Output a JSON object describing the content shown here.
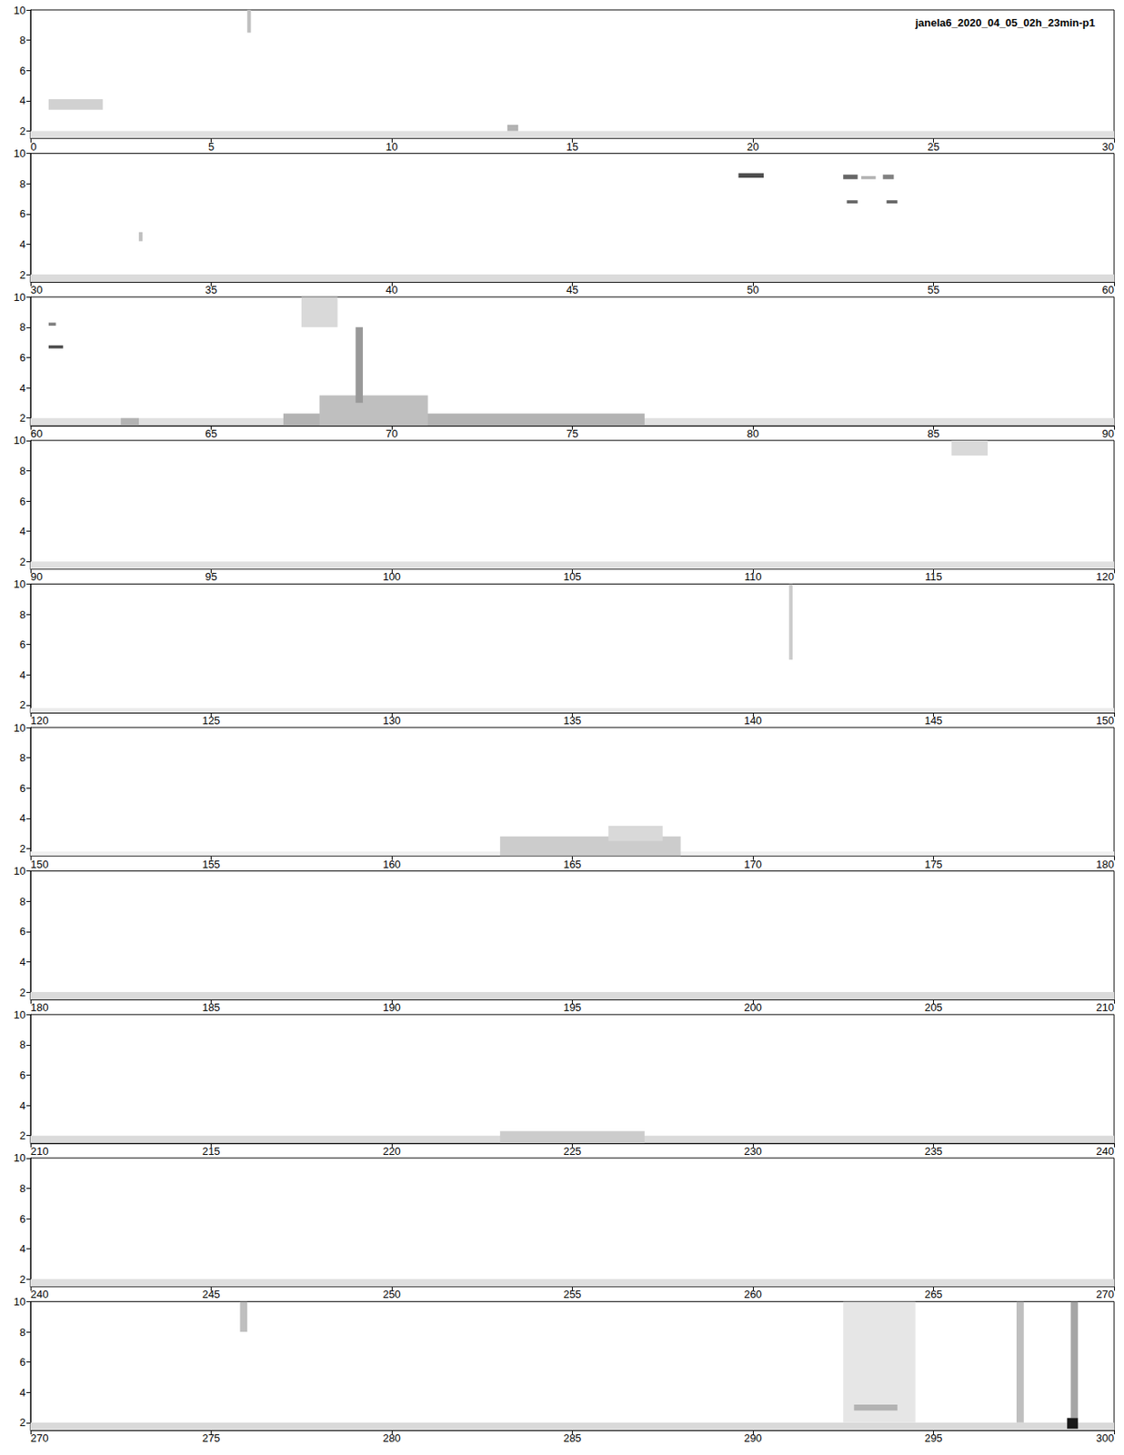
{
  "chart_data": {
    "type": "spectrogram",
    "title": "janela6_2020_04_05_02h_23min-p1",
    "ylim": [
      1.5,
      10
    ],
    "yticks": [
      2,
      4,
      6,
      8,
      10
    ],
    "panels": [
      {
        "xlim": [
          0,
          30
        ],
        "xticks": [
          0,
          5,
          10,
          15,
          20,
          25,
          30
        ]
      },
      {
        "xlim": [
          30,
          60
        ],
        "xticks": [
          30,
          35,
          40,
          45,
          50,
          55,
          60
        ]
      },
      {
        "xlim": [
          60,
          90
        ],
        "xticks": [
          60,
          65,
          70,
          75,
          80,
          85,
          90
        ]
      },
      {
        "xlim": [
          90,
          120
        ],
        "xticks": [
          90,
          95,
          100,
          105,
          110,
          115,
          120
        ]
      },
      {
        "xlim": [
          120,
          150
        ],
        "xticks": [
          120,
          125,
          130,
          135,
          140,
          145,
          150
        ]
      },
      {
        "xlim": [
          150,
          180
        ],
        "xticks": [
          150,
          155,
          160,
          165,
          170,
          175,
          180
        ]
      },
      {
        "xlim": [
          180,
          210
        ],
        "xticks": [
          180,
          185,
          190,
          195,
          200,
          205,
          210
        ]
      },
      {
        "xlim": [
          210,
          240
        ],
        "xticks": [
          210,
          215,
          220,
          225,
          230,
          235,
          240
        ]
      },
      {
        "xlim": [
          240,
          270
        ],
        "xticks": [
          240,
          245,
          250,
          255,
          260,
          265,
          270
        ]
      },
      {
        "xlim": [
          270,
          300
        ],
        "xticks": [
          270,
          275,
          280,
          285,
          290,
          295,
          300
        ]
      }
    ],
    "events": [
      [
        0,
        30,
        1.5,
        2.0,
        0.12
      ],
      [
        0.5,
        2.0,
        3.4,
        4.1,
        0.18
      ],
      [
        13.2,
        13.5,
        2.0,
        2.4,
        0.3
      ],
      [
        6.0,
        6.1,
        8.5,
        10,
        0.25
      ],
      [
        30,
        60,
        1.5,
        2.0,
        0.14
      ],
      [
        49.6,
        50.3,
        8.4,
        8.7,
        0.7
      ],
      [
        52.5,
        52.9,
        8.3,
        8.6,
        0.6
      ],
      [
        53.0,
        53.4,
        8.3,
        8.5,
        0.3
      ],
      [
        53.6,
        53.9,
        8.3,
        8.6,
        0.5
      ],
      [
        52.6,
        52.9,
        6.7,
        6.9,
        0.6
      ],
      [
        53.7,
        54.0,
        6.7,
        6.9,
        0.6
      ],
      [
        33.0,
        33.1,
        4.2,
        4.8,
        0.25
      ],
      [
        60,
        90,
        1.5,
        2.0,
        0.12
      ],
      [
        60.5,
        60.7,
        8.1,
        8.3,
        0.5
      ],
      [
        60.5,
        60.9,
        6.6,
        6.8,
        0.7
      ],
      [
        67,
        77,
        1.5,
        2.3,
        0.3
      ],
      [
        68,
        71,
        1.5,
        3.5,
        0.25
      ],
      [
        69.0,
        69.2,
        3.0,
        8.0,
        0.4
      ],
      [
        67.5,
        68.5,
        8.0,
        10,
        0.15
      ],
      [
        62.5,
        63.0,
        1.5,
        2.0,
        0.3
      ],
      [
        90,
        120,
        1.5,
        2.0,
        0.12
      ],
      [
        115.5,
        116.5,
        9.0,
        10,
        0.15
      ],
      [
        120,
        150,
        1.5,
        1.8,
        0.08
      ],
      [
        141.0,
        141.1,
        5.0,
        10,
        0.2
      ],
      [
        150,
        180,
        1.5,
        1.8,
        0.06
      ],
      [
        163.0,
        168.0,
        1.5,
        2.8,
        0.2
      ],
      [
        166.0,
        167.5,
        2.5,
        3.5,
        0.15
      ],
      [
        180,
        210,
        1.5,
        2.0,
        0.14
      ],
      [
        210,
        240,
        1.5,
        2.0,
        0.14
      ],
      [
        223.0,
        227.0,
        1.5,
        2.3,
        0.2
      ],
      [
        240,
        270,
        1.5,
        2.0,
        0.13
      ],
      [
        270,
        300,
        1.5,
        2.0,
        0.15
      ],
      [
        275.8,
        276.0,
        8.0,
        10,
        0.25
      ],
      [
        292.5,
        294.5,
        2.0,
        10,
        0.1
      ],
      [
        292.8,
        294.0,
        2.8,
        3.2,
        0.3
      ],
      [
        297.3,
        297.5,
        2.0,
        10,
        0.25
      ],
      [
        298.8,
        299.0,
        2.3,
        10,
        0.35
      ],
      [
        298.7,
        299.0,
        1.6,
        2.3,
        0.9
      ]
    ]
  }
}
